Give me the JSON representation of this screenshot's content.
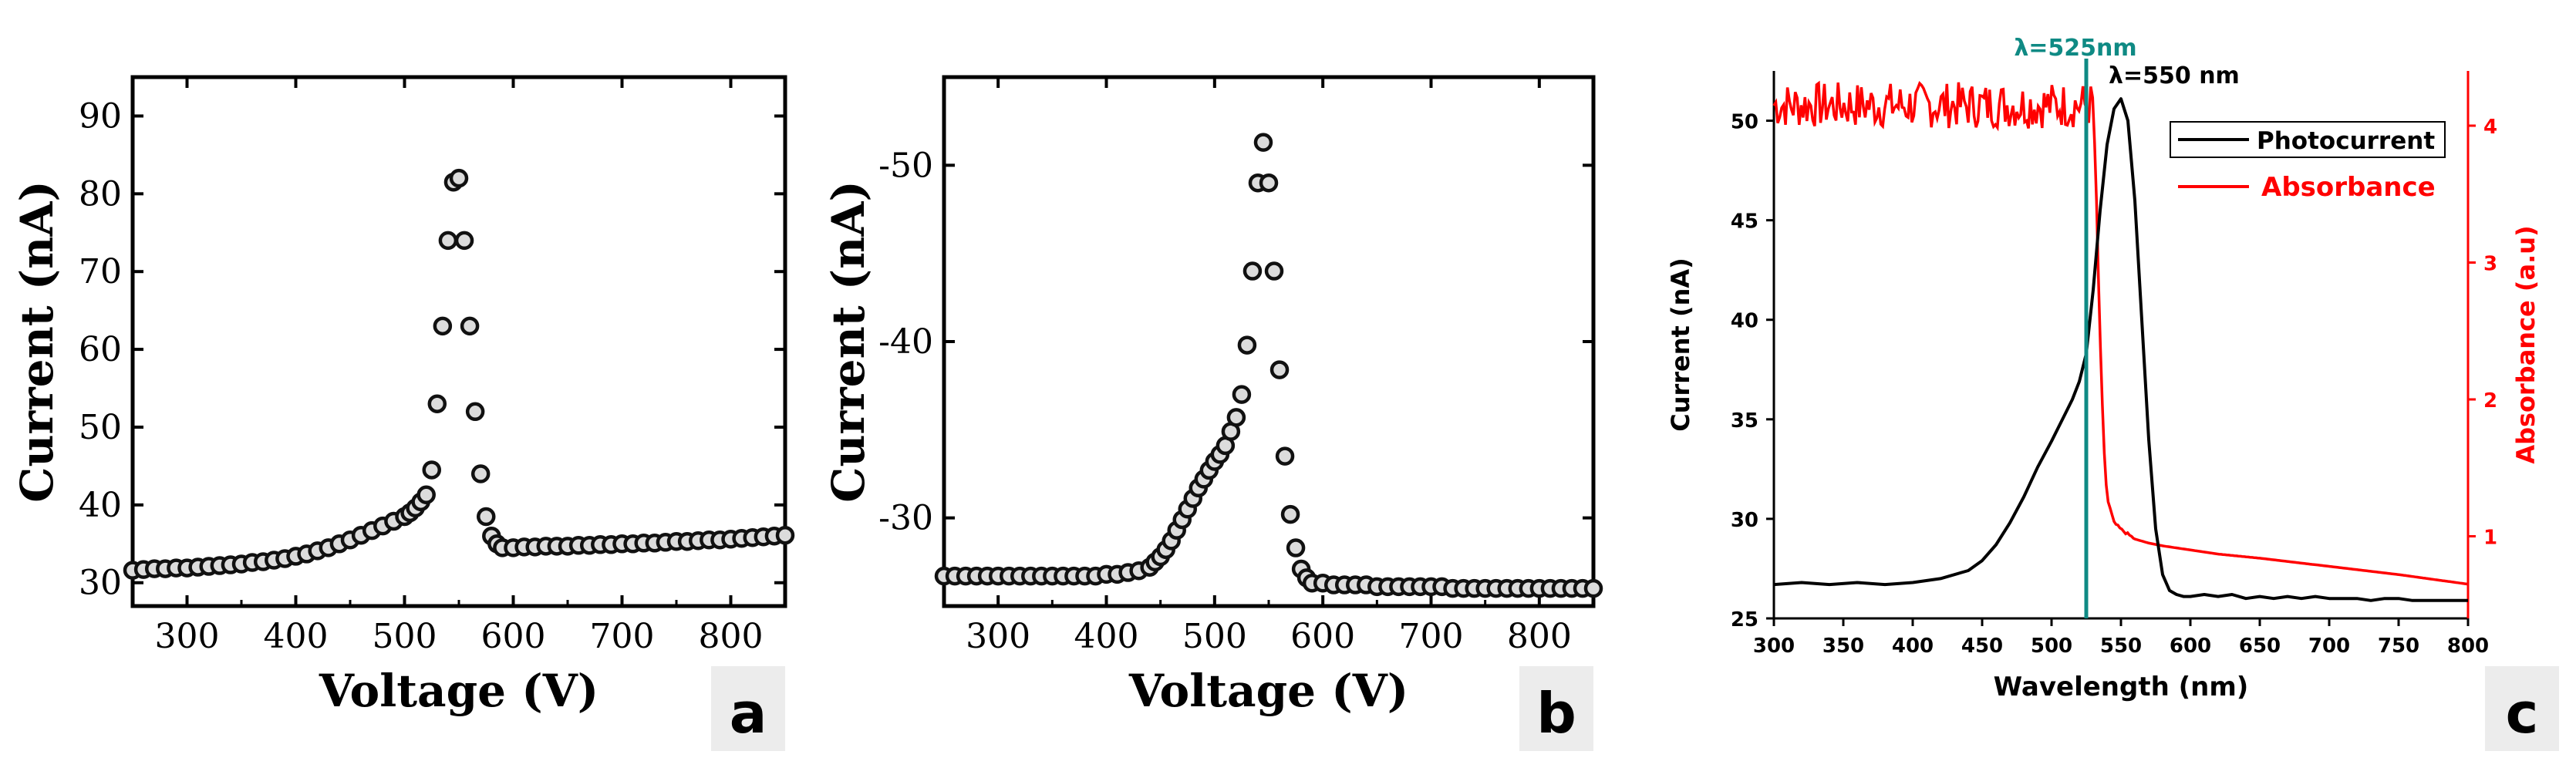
{
  "chart_data": [
    {
      "type": "scatter",
      "panel_label": "a",
      "xlabel": "Voltage (V)",
      "ylabel": "Current (nA)",
      "xlim": [
        250,
        850
      ],
      "ylim": [
        27,
        95
      ],
      "xticks": [
        300,
        400,
        500,
        600,
        700,
        800
      ],
      "yticks": [
        30,
        40,
        50,
        60,
        70,
        80,
        90
      ],
      "ytick_labels": [
        "30",
        "40",
        "50",
        "60",
        "70",
        "80",
        "90"
      ],
      "series": [
        {
          "marker": "open-circle",
          "x": [
            250,
            260,
            270,
            280,
            290,
            300,
            310,
            320,
            330,
            340,
            350,
            360,
            370,
            380,
            390,
            400,
            410,
            420,
            430,
            440,
            450,
            460,
            470,
            480,
            490,
            500,
            505,
            510,
            515,
            520,
            525,
            530,
            535,
            540,
            545,
            550,
            555,
            560,
            565,
            570,
            575,
            580,
            585,
            590,
            600,
            610,
            620,
            630,
            640,
            650,
            660,
            670,
            680,
            690,
            700,
            710,
            720,
            730,
            740,
            750,
            760,
            770,
            780,
            790,
            800,
            810,
            820,
            830,
            840,
            850
          ],
          "y": [
            31.6,
            31.7,
            31.8,
            31.8,
            31.9,
            31.9,
            32.0,
            32.1,
            32.2,
            32.3,
            32.4,
            32.6,
            32.7,
            32.9,
            33.1,
            33.4,
            33.7,
            34.1,
            34.5,
            35.0,
            35.5,
            36.1,
            36.7,
            37.3,
            37.9,
            38.5,
            39.0,
            39.6,
            40.4,
            41.3,
            44.5,
            53.0,
            63.0,
            74.0,
            81.5,
            82.0,
            74.0,
            63.0,
            52.0,
            44.0,
            38.5,
            36.0,
            35.0,
            34.5,
            34.5,
            34.6,
            34.6,
            34.7,
            34.7,
            34.7,
            34.8,
            34.8,
            34.9,
            34.9,
            35.0,
            35.0,
            35.1,
            35.1,
            35.2,
            35.3,
            35.3,
            35.4,
            35.5,
            35.5,
            35.6,
            35.7,
            35.8,
            35.9,
            36.0,
            36.1
          ]
        }
      ]
    },
    {
      "type": "scatter",
      "panel_label": "b",
      "xlabel": "Voltage (V)",
      "ylabel": "Current (nA)",
      "xlim": [
        250,
        850
      ],
      "ylim": [
        -25,
        -55
      ],
      "xticks": [
        300,
        400,
        500,
        600,
        700,
        800
      ],
      "yticks": [
        -30,
        -40,
        -50
      ],
      "ytick_labels": [
        "-30",
        "-40",
        "-50"
      ],
      "series": [
        {
          "marker": "open-circle",
          "x": [
            250,
            260,
            270,
            280,
            290,
            300,
            310,
            320,
            330,
            340,
            350,
            360,
            370,
            380,
            390,
            400,
            410,
            420,
            430,
            440,
            445,
            450,
            455,
            460,
            465,
            470,
            475,
            480,
            485,
            490,
            495,
            500,
            505,
            510,
            515,
            520,
            525,
            530,
            535,
            540,
            545,
            550,
            555,
            560,
            565,
            570,
            575,
            580,
            585,
            590,
            600,
            610,
            620,
            630,
            640,
            650,
            660,
            670,
            680,
            690,
            700,
            710,
            720,
            730,
            740,
            750,
            760,
            770,
            780,
            790,
            800,
            810,
            820,
            830,
            840,
            850
          ],
          "y": [
            -26.7,
            -26.7,
            -26.7,
            -26.7,
            -26.7,
            -26.7,
            -26.7,
            -26.7,
            -26.7,
            -26.7,
            -26.7,
            -26.7,
            -26.7,
            -26.7,
            -26.7,
            -26.8,
            -26.8,
            -26.9,
            -27.0,
            -27.2,
            -27.5,
            -27.8,
            -28.2,
            -28.7,
            -29.3,
            -29.9,
            -30.5,
            -31.1,
            -31.7,
            -32.2,
            -32.7,
            -33.2,
            -33.6,
            -34.1,
            -34.9,
            -35.7,
            -37.0,
            -39.8,
            -44.0,
            -49.0,
            -51.3,
            -49.0,
            -44.0,
            -38.4,
            -33.5,
            -30.2,
            -28.3,
            -27.1,
            -26.6,
            -26.3,
            -26.3,
            -26.2,
            -26.2,
            -26.2,
            -26.2,
            -26.1,
            -26.1,
            -26.1,
            -26.1,
            -26.1,
            -26.1,
            -26.1,
            -26.0,
            -26.0,
            -26.0,
            -26.0,
            -26.0,
            -26.0,
            -26.0,
            -26.0,
            -26.0,
            -26.0,
            -26.0,
            -26.0,
            -26.0,
            -26.0
          ]
        }
      ]
    },
    {
      "type": "line",
      "panel_label": "c",
      "xlabel": "Wavelength (nm)",
      "ylabel": "Current (nA)",
      "y2label": "Absorbance (a.u)",
      "xlim": [
        300,
        800
      ],
      "ylim": [
        25,
        52.5
      ],
      "y2lim": [
        0.4,
        4.4
      ],
      "xticks": [
        300,
        350,
        400,
        450,
        500,
        550,
        600,
        650,
        700,
        750,
        800
      ],
      "yticks": [
        25,
        30,
        35,
        40,
        45,
        50
      ],
      "y2ticks": [
        1,
        2,
        3,
        4
      ],
      "legend_position": "top-right",
      "annotations": {
        "left_marker": "λ=525nm",
        "left_marker_x": 525,
        "right_marker": "λ=550 nm",
        "right_marker_x": 550
      },
      "series": [
        {
          "name": "Photocurrent",
          "axis": "left",
          "color": "#000000",
          "x": [
            300,
            320,
            340,
            360,
            380,
            400,
            420,
            440,
            450,
            460,
            470,
            480,
            490,
            500,
            505,
            510,
            515,
            520,
            525,
            530,
            535,
            540,
            545,
            550,
            555,
            560,
            565,
            570,
            575,
            580,
            585,
            590,
            595,
            600,
            610,
            620,
            630,
            640,
            650,
            660,
            670,
            680,
            690,
            700,
            710,
            720,
            730,
            740,
            750,
            760,
            770,
            780,
            790,
            800
          ],
          "y": [
            26.7,
            26.8,
            26.7,
            26.8,
            26.7,
            26.8,
            27.0,
            27.4,
            27.9,
            28.7,
            29.8,
            31.1,
            32.6,
            33.9,
            34.6,
            35.3,
            36.0,
            36.9,
            38.3,
            41.5,
            45.5,
            48.8,
            50.6,
            51.1,
            50.0,
            46.0,
            40.0,
            34.0,
            29.5,
            27.2,
            26.4,
            26.2,
            26.1,
            26.1,
            26.2,
            26.1,
            26.2,
            26.0,
            26.1,
            26.0,
            26.1,
            26.0,
            26.1,
            26.0,
            26.0,
            26.0,
            25.9,
            26.0,
            26.0,
            25.9,
            25.9,
            25.9,
            25.9,
            25.9
          ]
        },
        {
          "name": "Absorbance",
          "axis": "right",
          "color": "#ff0000",
          "x": [
            300,
            530,
            532,
            534,
            536,
            538,
            540,
            545,
            550,
            560,
            570,
            580,
            600,
            620,
            650,
            700,
            750,
            800
          ],
          "y": [
            4.15,
            4.15,
            3.6,
            2.8,
            2.1,
            1.6,
            1.28,
            1.1,
            1.05,
            0.98,
            0.95,
            0.93,
            0.9,
            0.87,
            0.84,
            0.78,
            0.72,
            0.65
          ]
        }
      ]
    }
  ],
  "colors": {
    "marker_fill": "#dcdcdc",
    "marker_stroke": "#111111",
    "teal_marker": "#0f8a84",
    "absorbance": "#ff0000",
    "label_box_fill": "#ececec"
  }
}
